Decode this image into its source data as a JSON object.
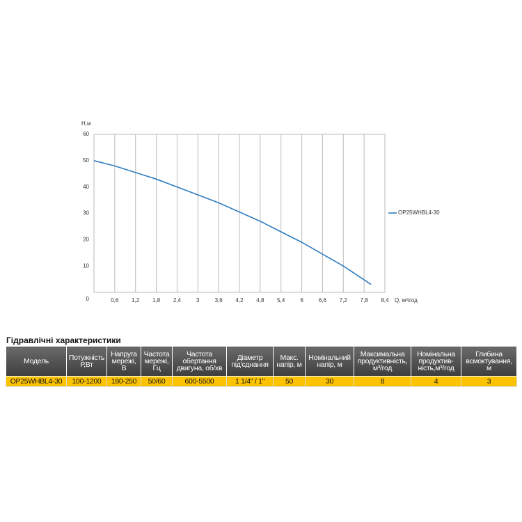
{
  "chart_data": {
    "type": "line",
    "y_label": "H,м",
    "x_label": "Q, м³/год",
    "xlim": [
      0,
      8.4
    ],
    "xticks": [
      {
        "value": 0.6,
        "label": "0,6"
      },
      {
        "value": 1.2,
        "label": "1,2"
      },
      {
        "value": 1.8,
        "label": "1,8"
      },
      {
        "value": 2.4,
        "label": "2,4"
      },
      3,
      {
        "value": 3.6,
        "label": "3,6"
      },
      {
        "value": 4.2,
        "label": "4,2"
      },
      {
        "value": 4.8,
        "label": "4,8"
      },
      {
        "value": 5.4,
        "label": "5,4"
      },
      6,
      {
        "value": 6.6,
        "label": "6,6"
      },
      {
        "value": 7.2,
        "label": "7,2"
      },
      {
        "value": 7.8,
        "label": "7,8"
      },
      {
        "value": 8.4,
        "label": "8,4"
      }
    ],
    "ylim": [
      0,
      60
    ],
    "yticks": [
      0,
      10,
      20,
      30,
      40,
      50,
      60
    ],
    "grid": true,
    "legend": "right",
    "x": [
      0,
      0.6,
      1.2,
      1.8,
      2.4,
      3,
      3.6,
      4.2,
      4.8,
      5.4,
      6,
      6.6,
      7.2,
      8.0
    ],
    "series": [
      {
        "name": "OP25WHBL4-30",
        "color": "#2e7bbf",
        "values": [
          50,
          48,
          45.5,
          43,
          40,
          37,
          34,
          30.5,
          27,
          23,
          19,
          14.5,
          10,
          3
        ]
      }
    ]
  },
  "table": {
    "title": "Гідравлічні характеристики",
    "header": [
      "Модель",
      "Потужність\nР,Вт",
      "Напруга\nмережі,\nВ",
      "Частота\nмережі,\nГц",
      "Частота\nобертання\nдвигуна, об/хв",
      "Діаметр\nпід'єднання",
      "Макс.\nнапір, м",
      "Номінальний\nнапір, м",
      "Максимальна\nпродуктивність,\nм³/год",
      "Номінальна\nпродуктив-\nність,м³/год",
      "Глибина\nвсмоктування,\nм"
    ],
    "rows": [
      [
        "OP25WHBL4-30",
        "100-1200",
        "180-250",
        "50/60",
        "600-5500",
        "1 1/4\" / 1\"",
        "50",
        "30",
        "8",
        "4",
        "3"
      ]
    ]
  }
}
